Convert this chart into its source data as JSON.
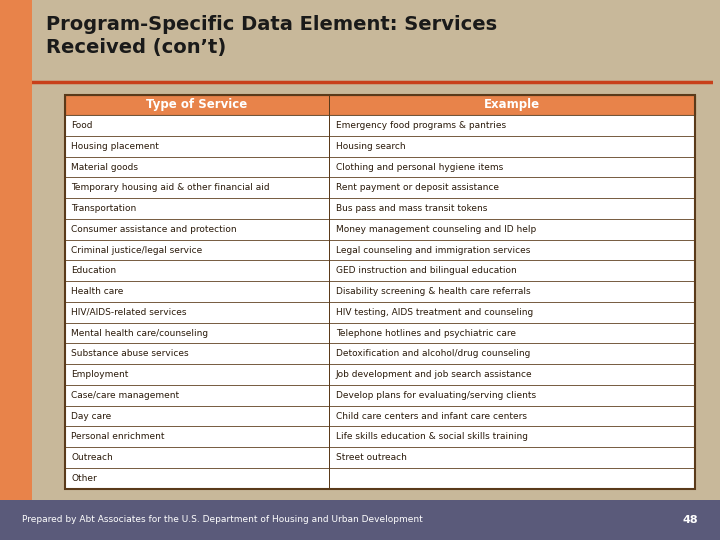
{
  "title": "Program-Specific Data Element: Services\nReceived (con’t)",
  "background_color": "#c8b89a",
  "title_color": "#1a1a1a",
  "header_bg": "#e8834a",
  "header_text_color": "#ffffff",
  "table_border_color": "#5a3a1a",
  "row_bg_even": "#ffffff",
  "row_bg_odd": "#f5f0ea",
  "footer_bg": "#5a5a7a",
  "footer_text": "Prepared by Abt Associates for the U.S. Department of Housing and Urban Development",
  "footer_page": "48",
  "left_stripe_color": "#e8834a",
  "red_line_color": "#c8401a",
  "col1_header": "Type of Service",
  "col2_header": "Example",
  "rows": [
    [
      "Food",
      "Emergency food programs & pantries"
    ],
    [
      "Housing placement",
      "Housing search"
    ],
    [
      "Material goods",
      "Clothing and personal hygiene items"
    ],
    [
      "Temporary housing aid & other financial aid",
      "Rent payment or deposit assistance"
    ],
    [
      "Transportation",
      "Bus pass and mass transit tokens"
    ],
    [
      "Consumer assistance and protection",
      "Money management counseling and ID help"
    ],
    [
      "Criminal justice/legal service",
      "Legal counseling and immigration services"
    ],
    [
      "Education",
      "GED instruction and bilingual education"
    ],
    [
      "Health care",
      "Disability screening & health care referrals"
    ],
    [
      "HIV/AIDS-related services",
      "HIV testing, AIDS treatment and counseling"
    ],
    [
      "Mental health care/counseling",
      "Telephone hotlines and psychiatric care"
    ],
    [
      "Substance abuse services",
      "Detoxification and alcohol/drug counseling"
    ],
    [
      "Employment",
      "Job development and job search assistance"
    ],
    [
      "Case/care management",
      "Develop plans for evaluating/serving clients"
    ],
    [
      "Day care",
      "Child care centers and infant care centers"
    ],
    [
      "Personal enrichment",
      "Life skills education & social skills training"
    ],
    [
      "Outreach",
      "Street outreach"
    ],
    [
      "Other",
      ""
    ]
  ]
}
